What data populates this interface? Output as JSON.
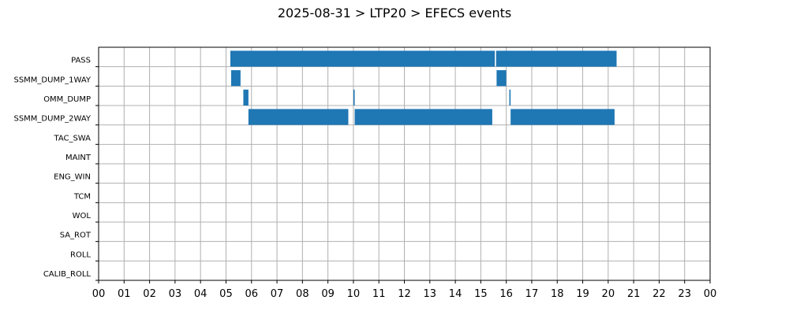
{
  "chart_data": {
    "type": "gantt",
    "title": "2025-08-31 > LTP20 > EFECS events",
    "xlabel": "",
    "ylabel": "",
    "x_unit": "hour of day",
    "xlim": [
      0,
      24
    ],
    "x_tick_labels": [
      "00",
      "01",
      "02",
      "03",
      "04",
      "05",
      "06",
      "07",
      "08",
      "09",
      "10",
      "11",
      "12",
      "13",
      "14",
      "15",
      "16",
      "17",
      "18",
      "19",
      "20",
      "21",
      "22",
      "23",
      "00"
    ],
    "categories": [
      "PASS",
      "SSMM_DUMP_1WAY",
      "OMM_DUMP",
      "SSMM_DUMP_2WAY",
      "TAC_SWA",
      "MAINT",
      "ENG_WIN",
      "TCM",
      "WOL",
      "SA_ROT",
      "ROLL",
      "CALIB_ROLL"
    ],
    "grid": true,
    "bar_color": "#1f77b4",
    "intervals": [
      {
        "event": "PASS",
        "start": 5.17,
        "end": 15.55
      },
      {
        "event": "PASS",
        "start": 15.6,
        "end": 20.33
      },
      {
        "event": "SSMM_DUMP_1WAY",
        "start": 5.2,
        "end": 5.57
      },
      {
        "event": "SSMM_DUMP_1WAY",
        "start": 15.62,
        "end": 16.0
      },
      {
        "event": "OMM_DUMP",
        "start": 5.68,
        "end": 5.88
      },
      {
        "event": "OMM_DUMP",
        "start": 10.0,
        "end": 10.05
      },
      {
        "event": "OMM_DUMP",
        "start": 16.12,
        "end": 16.17
      },
      {
        "event": "SSMM_DUMP_2WAY",
        "start": 5.88,
        "end": 9.8
      },
      {
        "event": "SSMM_DUMP_2WAY",
        "start": 10.05,
        "end": 15.45
      },
      {
        "event": "SSMM_DUMP_2WAY",
        "start": 16.17,
        "end": 20.25
      }
    ]
  }
}
